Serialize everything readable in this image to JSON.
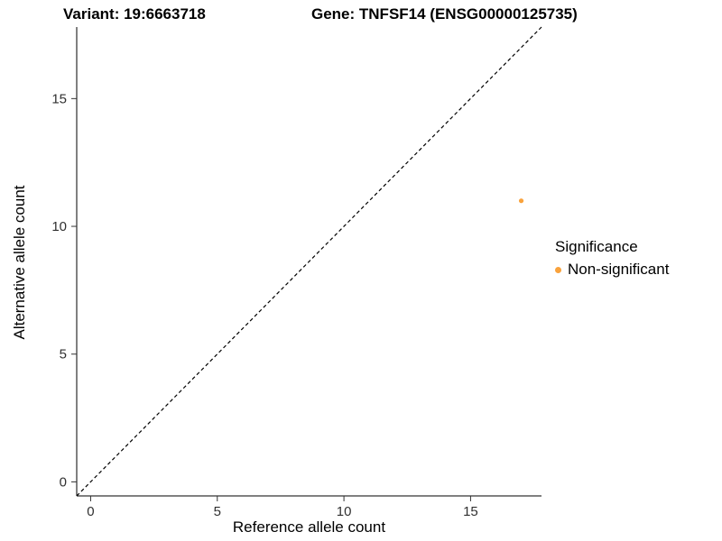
{
  "titles": {
    "variant": "Variant: 19:6663718",
    "gene": "Gene: TNFSF14 (ENSG00000125735)"
  },
  "legend": {
    "title": "Significance",
    "items": [
      {
        "label": "Non-significant",
        "color": "#F9A23C"
      }
    ]
  },
  "chart_data": {
    "type": "scatter",
    "title": "Variant: 19:6663718 / Gene: TNFSF14 (ENSG00000125735)",
    "xlabel": "Reference allele count",
    "ylabel": "Alternative allele count",
    "xlim": [
      -0.55,
      17.8
    ],
    "ylim": [
      -0.55,
      17.8
    ],
    "xticks": [
      0,
      5,
      10,
      15
    ],
    "yticks": [
      0,
      5,
      10,
      15
    ],
    "grid": false,
    "legend_position": "right",
    "axis_color": "#000000",
    "tick_color": "#333333",
    "series": [
      {
        "name": "Non-significant",
        "color": "#F9A23C",
        "points": [
          {
            "x": 17,
            "y": 11
          }
        ]
      }
    ],
    "annotations": [
      {
        "type": "identity-line",
        "x1": -0.55,
        "y1": -0.55,
        "x2": 17.8,
        "y2": 17.8,
        "linetype": "dashed",
        "color": "#000000"
      }
    ]
  }
}
